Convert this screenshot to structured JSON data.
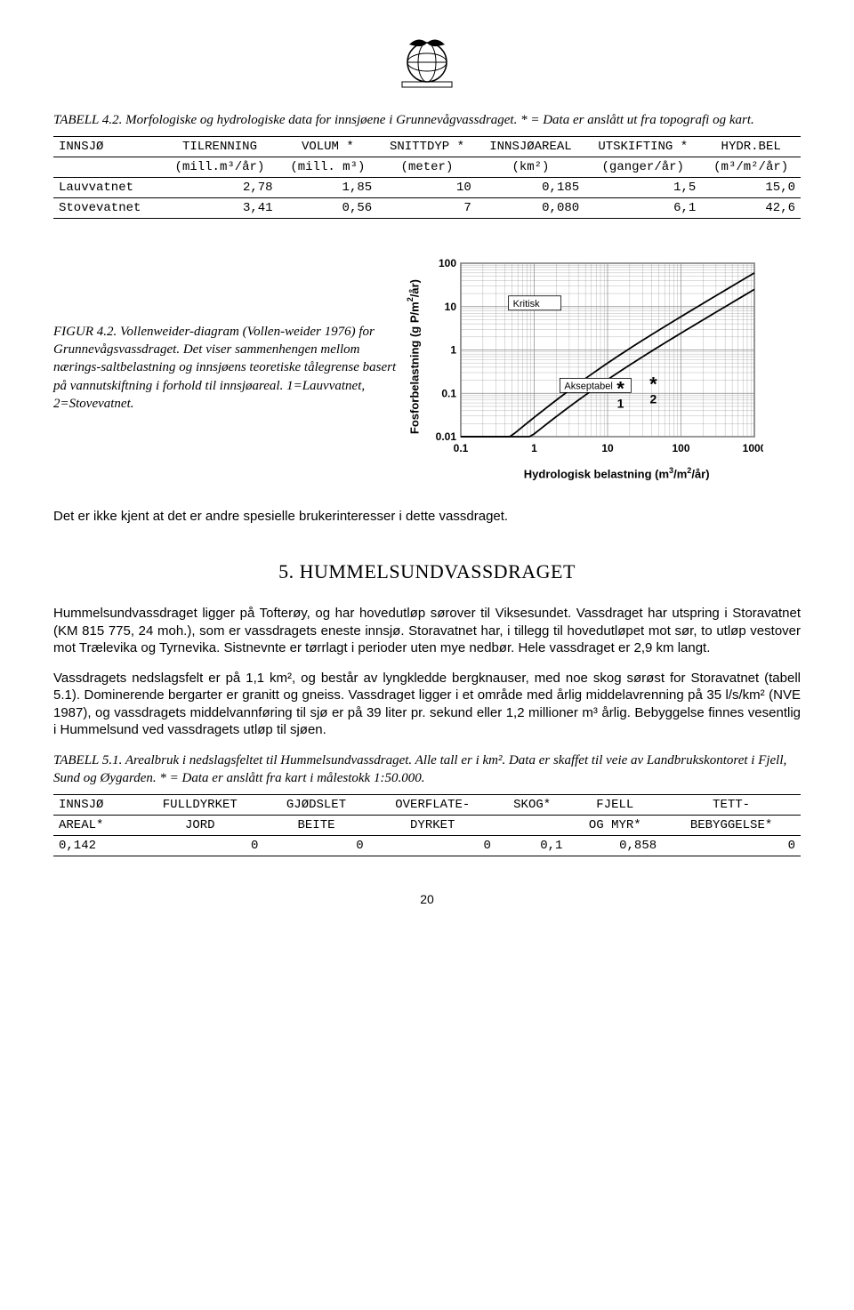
{
  "table1": {
    "caption_prefix": "TABELL 4.2. Morfologiske og hydrologiske data for innsjøene i Grunnevågvassdraget. * = Data er anslått ut fra topografi og kart.",
    "columns": [
      {
        "h1": "INNSJØ",
        "h2": ""
      },
      {
        "h1": "TILRENNING",
        "h2": "(mill.m³/år)"
      },
      {
        "h1": "VOLUM *",
        "h2": "(mill. m³)"
      },
      {
        "h1": "SNITTDYP *",
        "h2": "(meter)"
      },
      {
        "h1": "INNSJØAREAL",
        "h2": "(km²)"
      },
      {
        "h1": "UTSKIFTING *",
        "h2": "(ganger/år)"
      },
      {
        "h1": "HYDR.BEL",
        "h2": "(m³/m²/år)"
      }
    ],
    "rows": [
      [
        "Lauvvatnet",
        "2,78",
        "1,85",
        "10",
        "0,185",
        "1,5",
        "15,0"
      ],
      [
        "Stovevatnet",
        "3,41",
        "0,56",
        "7",
        "0,080",
        "6,1",
        "42,6"
      ]
    ]
  },
  "figure": {
    "caption": "FIGUR 4.2. Vollenweider-diagram (Vollen-weider 1976) for Grunnevågsvassdraget. Det viser sammenhengen mellom nærings-saltbelastning og innsjøens teoretiske tålegrense basert på vannutskiftning i forhold til innsjøareal. 1=Lauvvatnet, 2=Stovevatnet.",
    "ylabel": "Fosforbelastning (g P/m²/år)",
    "xlabel": "Hydrologisk belastning (m³/m²/år)",
    "xticks": [
      "0.1",
      "1",
      "10",
      "100",
      "1000"
    ],
    "yticks": [
      "0.01",
      "0.1",
      "1",
      "10",
      "100"
    ],
    "label_kritisk": "Kritisk",
    "label_akseptabel": "Akseptabel",
    "point1": {
      "label": "1",
      "x_log": 2.18,
      "y_log": 1.05
    },
    "point2": {
      "label": "2",
      "x_log": 2.63,
      "y_log": 1.18
    },
    "grid_color": "#888888",
    "line_color": "#000000",
    "background": "#ffffff",
    "frame_stroke": "#000000"
  },
  "body": {
    "p1": "Det er ikke kjent at det er andre spesielle brukerinteresser i dette vassdraget.",
    "section": "5. HUMMELSUNDVASSDRAGET",
    "p2": "Hummelsundvassdraget ligger på Tofterøy, og har hovedutløp sørover til Viksesundet. Vassdraget har utspring i Storavatnet (KM 815 775, 24 moh.), som er vassdragets eneste innsjø. Storavatnet har, i tillegg til hovedutløpet mot sør, to utløp vestover mot Trælevika og Tyrnevika. Sistnevnte er tørrlagt i perioder uten mye nedbør. Hele vassdraget er 2,9 km langt.",
    "p3": "Vassdragets nedslagsfelt er på 1,1 km², og består av lyngkledde bergknauser, med noe skog sørøst for Storavatnet (tabell 5.1). Dominerende bergarter er granitt og gneiss. Vassdraget ligger i et område med årlig middelavrenning på 35 l/s/km² (NVE 1987), og vassdragets middelvannføring til sjø er på 39 liter pr. sekund eller 1,2 millioner m³ årlig. Bebyggelse finnes vesentlig i Hummelsund ved vassdragets utløp til sjøen."
  },
  "table2": {
    "caption": "TABELL 5.1. Arealbruk i nedslagsfeltet til Hummelsundvassdraget. Alle tall er i km². Data er skaffet til veie av Landbrukskontoret i Fjell, Sund og Øygarden. * = Data er anslått fra kart i målestokk 1:50.000.",
    "columns": [
      {
        "h1": "INNSJØ",
        "h2": "AREAL*"
      },
      {
        "h1": "FULLDYRKET",
        "h2": "JORD"
      },
      {
        "h1": "GJØDSLET",
        "h2": "BEITE"
      },
      {
        "h1": "OVERFLATE-",
        "h2": "DYRKET"
      },
      {
        "h1": "SKOG*",
        "h2": ""
      },
      {
        "h1": "FJELL",
        "h2": "OG MYR*"
      },
      {
        "h1": "TETT-",
        "h2": "BEBYGGELSE*"
      }
    ],
    "rows": [
      [
        "0,142",
        "0",
        "0",
        "0",
        "0,1",
        "0,858",
        "0"
      ]
    ]
  },
  "page_number": "20"
}
